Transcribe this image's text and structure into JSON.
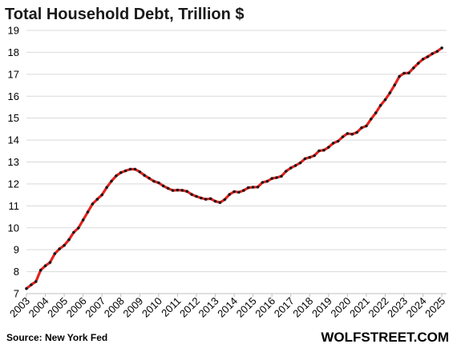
{
  "chart_data": {
    "type": "line",
    "title": "Total Household Debt, Trillion $",
    "xlabel": "",
    "ylabel": "",
    "ylim": [
      7,
      19
    ],
    "yticks": [
      7,
      8,
      9,
      10,
      11,
      12,
      13,
      14,
      15,
      16,
      17,
      18,
      19
    ],
    "x_tick_labels": [
      "2003",
      "2004",
      "2005",
      "2006",
      "2007",
      "2008",
      "2009",
      "2010",
      "2011",
      "2012",
      "2013",
      "2014",
      "2015",
      "2016",
      "2017",
      "2018",
      "2019",
      "2020",
      "2021",
      "2022",
      "2023",
      "2024",
      "2025"
    ],
    "x_start_year": 2003,
    "x_end_year": 2025.25,
    "grid": true,
    "legend": "none",
    "line_color": "#e4201c",
    "marker_color": "#1a1a1a",
    "series": [
      {
        "values": [
          7.23,
          7.4,
          7.55,
          8.07,
          8.27,
          8.42,
          8.82,
          9.04,
          9.2,
          9.46,
          9.79,
          9.99,
          10.36,
          10.72,
          11.09,
          11.3,
          11.5,
          11.84,
          12.13,
          12.37,
          12.52,
          12.6,
          12.67,
          12.67,
          12.55,
          12.39,
          12.26,
          12.12,
          12.05,
          11.91,
          11.8,
          11.7,
          11.72,
          11.71,
          11.66,
          11.52,
          11.43,
          11.36,
          11.3,
          11.33,
          11.21,
          11.15,
          11.29,
          11.52,
          11.65,
          11.62,
          11.7,
          11.83,
          11.85,
          11.86,
          12.07,
          12.12,
          12.25,
          12.29,
          12.35,
          12.58,
          12.73,
          12.84,
          12.96,
          13.15,
          13.21,
          13.29,
          13.51,
          13.54,
          13.67,
          13.86,
          13.95,
          14.15,
          14.3,
          14.27,
          14.35,
          14.56,
          14.64,
          14.96,
          15.24,
          15.58,
          15.84,
          16.15,
          16.51,
          16.9,
          17.05,
          17.06,
          17.29,
          17.5,
          17.69,
          17.8,
          17.94,
          18.04,
          18.2
        ]
      }
    ],
    "source": "Source: New York Fed",
    "brand": "WOLFSTREET.COM"
  }
}
